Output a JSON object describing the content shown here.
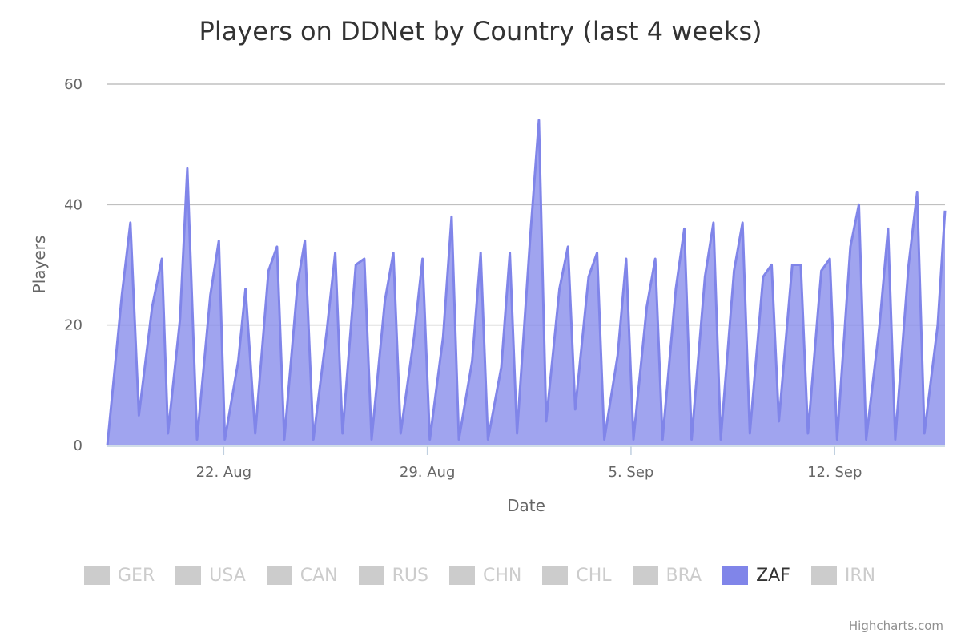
{
  "chart_data": {
    "type": "area",
    "title": "Players on DDNet by Country (last 4 weeks)",
    "xlabel": "Date",
    "ylabel": "Players",
    "xlim": [
      "2023-08-18",
      "2023-09-15T19:00"
    ],
    "ylim": [
      0,
      60
    ],
    "y_ticks": [
      0,
      20,
      40,
      60
    ],
    "x_ticks": [
      {
        "label": "22. Aug",
        "date": "2023-08-22"
      },
      {
        "label": "29. Aug",
        "date": "2023-08-29"
      },
      {
        "label": "5. Sep",
        "date": "2023-09-05"
      },
      {
        "label": "12. Sep",
        "date": "2023-09-12"
      }
    ],
    "grid": true,
    "legend_position": "bottom",
    "series": [
      {
        "name": "ZAF",
        "color": "#8085e9",
        "x": [
          "2023-08-18",
          "2023-08-18T12:00",
          "2023-08-18T19:00",
          "2023-08-19T02:00",
          "2023-08-19T13:00",
          "2023-08-19T21:00",
          "2023-08-20T02:00",
          "2023-08-20T12:00",
          "2023-08-20T18:00",
          "2023-08-21T02:00",
          "2023-08-21T13:00",
          "2023-08-21T20:00",
          "2023-08-22T01:00",
          "2023-08-22T12:00",
          "2023-08-22T18:00",
          "2023-08-23T02:00",
          "2023-08-23T13:00",
          "2023-08-23T20:00",
          "2023-08-24T02:00",
          "2023-08-24T13:00",
          "2023-08-24T19:00",
          "2023-08-25T02:00",
          "2023-08-25T13:00",
          "2023-08-25T20:00",
          "2023-08-26T02:00",
          "2023-08-26T13:00",
          "2023-08-26T20:00",
          "2023-08-27T02:00",
          "2023-08-27T13:00",
          "2023-08-27T20:00",
          "2023-08-28T02:00",
          "2023-08-28T13:00",
          "2023-08-28T20:00",
          "2023-08-29T02:00",
          "2023-08-29T13:00",
          "2023-08-29T20:00",
          "2023-08-30T02:00",
          "2023-08-30T13:00",
          "2023-08-30T20:00",
          "2023-08-31T02:00",
          "2023-08-31T13:00",
          "2023-08-31T20:00",
          "2023-09-01T02:00",
          "2023-09-01T13:00",
          "2023-09-01T20:00",
          "2023-09-02T02:00",
          "2023-09-02T13:00",
          "2023-09-02T20:00",
          "2023-09-03T02:00",
          "2023-09-03T13:00",
          "2023-09-03T20:00",
          "2023-09-04T02:00",
          "2023-09-04T13:00",
          "2023-09-04T20:00",
          "2023-09-05T02:00",
          "2023-09-05T13:00",
          "2023-09-05T20:00",
          "2023-09-06T02:00",
          "2023-09-06T13:00",
          "2023-09-06T20:00",
          "2023-09-07T02:00",
          "2023-09-07T13:00",
          "2023-09-07T20:00",
          "2023-09-08T02:00",
          "2023-09-08T13:00",
          "2023-09-08T20:00",
          "2023-09-09T02:00",
          "2023-09-09T13:00",
          "2023-09-09T20:00",
          "2023-09-10T02:00",
          "2023-09-10T13:00",
          "2023-09-10T20:00",
          "2023-09-11T02:00",
          "2023-09-11T13:00",
          "2023-09-11T20:00",
          "2023-09-12T02:00",
          "2023-09-12T13:00",
          "2023-09-12T20:00",
          "2023-09-13T02:00",
          "2023-09-13T13:00",
          "2023-09-13T20:00",
          "2023-09-14T02:00",
          "2023-09-14T13:00",
          "2023-09-14T20:00",
          "2023-09-15T02:00",
          "2023-09-15T13:00",
          "2023-09-15T19:00"
        ],
        "values": [
          0,
          25,
          37,
          5,
          23,
          31,
          2,
          21,
          46,
          1,
          25,
          34,
          1,
          14,
          26,
          2,
          29,
          33,
          1,
          27,
          34,
          1,
          19,
          32,
          2,
          30,
          31,
          1,
          24,
          32,
          2,
          18,
          31,
          1,
          18,
          38,
          1,
          14,
          32,
          1,
          13,
          32,
          2,
          35,
          54,
          4,
          26,
          33,
          6,
          28,
          32,
          1,
          15,
          31,
          1,
          23,
          31,
          1,
          26,
          36,
          1,
          28,
          37,
          1,
          29,
          37,
          2,
          28,
          30,
          4,
          30,
          30,
          2,
          29,
          31,
          1,
          33,
          40,
          1,
          20,
          36,
          1,
          30,
          42,
          2,
          20,
          39
        ]
      },
      {
        "name": "GER",
        "color": "#cccccc",
        "values": []
      },
      {
        "name": "USA",
        "color": "#cccccc",
        "values": []
      },
      {
        "name": "CAN",
        "color": "#cccccc",
        "values": []
      },
      {
        "name": "RUS",
        "color": "#cccccc",
        "values": []
      },
      {
        "name": "CHN",
        "color": "#cccccc",
        "values": []
      },
      {
        "name": "CHL",
        "color": "#cccccc",
        "values": []
      },
      {
        "name": "BRA",
        "color": "#cccccc",
        "values": []
      },
      {
        "name": "IRN",
        "color": "#cccccc",
        "values": []
      }
    ]
  },
  "legend": [
    {
      "label": "GER",
      "active": false
    },
    {
      "label": "USA",
      "active": false
    },
    {
      "label": "CAN",
      "active": false
    },
    {
      "label": "RUS",
      "active": false
    },
    {
      "label": "CHN",
      "active": false
    },
    {
      "label": "CHL",
      "active": false
    },
    {
      "label": "BRA",
      "active": false
    },
    {
      "label": "ZAF",
      "active": true
    },
    {
      "label": "IRN",
      "active": false
    }
  ],
  "colors": {
    "active": "#8085e9",
    "inactive": "#cccccc",
    "active_text": "#333333",
    "inactive_text": "#cccccc"
  },
  "credits": "Highcharts.com"
}
